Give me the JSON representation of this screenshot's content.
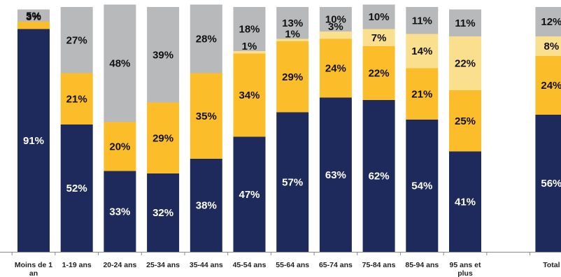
{
  "chart_data": {
    "type": "bar",
    "stacked": true,
    "normalized_percent": true,
    "categories": [
      [
        "Moins de 1",
        "an"
      ],
      [
        "1-19 ans"
      ],
      [
        "20-24 ans"
      ],
      [
        "25-34 ans"
      ],
      [
        "35-44 ans"
      ],
      [
        "45-54 ans"
      ],
      [
        "55-64 ans"
      ],
      [
        "65-74 ans"
      ],
      [
        "75-84 ans"
      ],
      [
        "85-94 ans"
      ],
      [
        "95 ans et",
        "plus"
      ],
      [
        ""
      ],
      [
        "Total"
      ]
    ],
    "series": [
      {
        "color": "#1f2a5c",
        "label_color": "#ffffff",
        "values": [
          91,
          52,
          33,
          32,
          38,
          47,
          57,
          63,
          62,
          54,
          41,
          null,
          56
        ],
        "labels": [
          "91%",
          "52%",
          "33%",
          "32%",
          "38%",
          "47%",
          "57%",
          "63%",
          "62%",
          "54%",
          "41%",
          "",
          "56%"
        ]
      },
      {
        "color": "#fbbd2a",
        "label_color": "#111111",
        "values": [
          3,
          21,
          20,
          29,
          35,
          34,
          29,
          24,
          22,
          21,
          25,
          null,
          24
        ],
        "labels": [
          "3%",
          "21%",
          "20%",
          "29%",
          "35%",
          "34%",
          "29%",
          "24%",
          "22%",
          "21%",
          "25%",
          "",
          "24%"
        ]
      },
      {
        "color": "#fadf8e",
        "label_color": "#111111",
        "values": [
          0,
          0,
          0,
          0,
          0,
          1,
          1,
          3,
          7,
          14,
          22,
          null,
          8
        ],
        "labels": [
          "",
          "",
          "",
          "",
          "",
          "1%",
          "1%",
          "3%",
          "7%",
          "14%",
          "22%",
          "",
          "8%"
        ]
      },
      {
        "color": "#b7b9bb",
        "label_color": "#111111",
        "values": [
          5,
          27,
          48,
          39,
          28,
          18,
          13,
          10,
          10,
          11,
          11,
          null,
          12
        ],
        "labels": [
          "5%",
          "27%",
          "48%",
          "39%",
          "28%",
          "18%",
          "13%",
          "10%",
          "10%",
          "11%",
          "11%",
          "",
          "12%"
        ]
      }
    ],
    "ylim": [
      0,
      100
    ],
    "grid": false,
    "legend": "none"
  }
}
